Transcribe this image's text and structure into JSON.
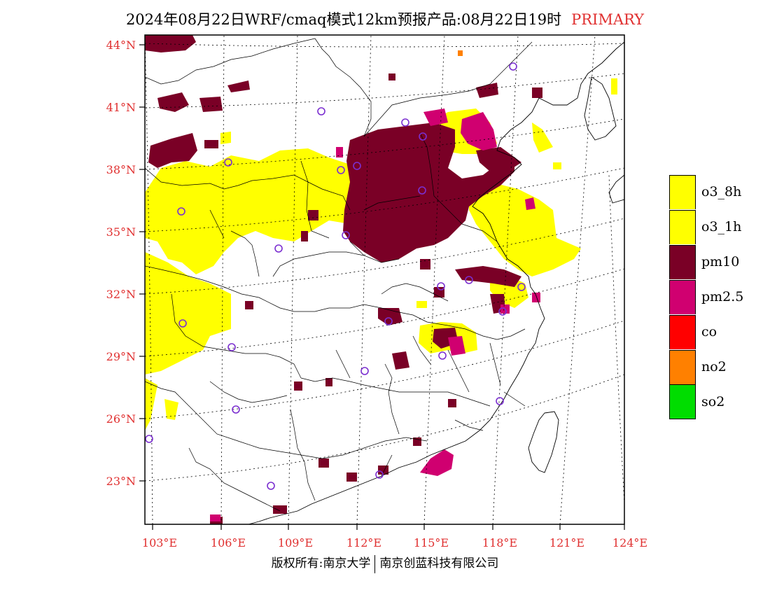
{
  "title": {
    "main": "2024年08月22日WRF/cmaq模式12km预报产品:08月22日19时",
    "tag": "PRIMARY"
  },
  "axes": {
    "lat_labels": [
      "44°N",
      "41°N",
      "38°N",
      "35°N",
      "32°N",
      "29°N",
      "26°N",
      "23°N"
    ],
    "lon_labels": [
      "103°E",
      "106°E",
      "109°E",
      "112°E",
      "115°E",
      "118°E",
      "121°E",
      "124°E"
    ]
  },
  "legend": {
    "items": [
      {
        "label": "o3_8h",
        "color": "#ffff00"
      },
      {
        "label": "o3_1h",
        "color": "#ffff00"
      },
      {
        "label": "pm10",
        "color": "#7a0026"
      },
      {
        "label": "pm2.5",
        "color": "#d00070"
      },
      {
        "label": "co",
        "color": "#ff0000"
      },
      {
        "label": "no2",
        "color": "#ff8000"
      },
      {
        "label": "so2",
        "color": "#00dd00"
      }
    ]
  },
  "footer": {
    "left": "版权所有:南京大学",
    "right": "南京创蓝科技有限公司"
  },
  "colors": {
    "o3": "#ffff00",
    "pm10": "#7a0026",
    "pm25": "#d00070",
    "no2": "#ff8000",
    "station": "#7b2fd0",
    "axis_text": "#e03030"
  }
}
